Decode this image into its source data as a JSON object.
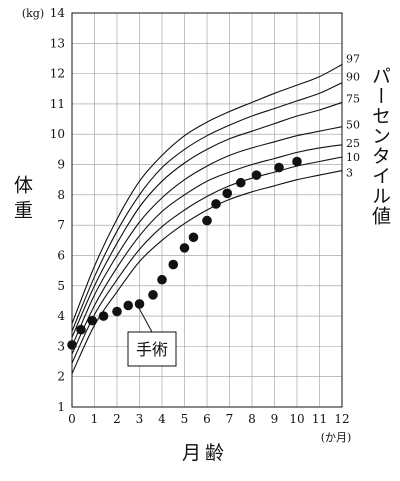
{
  "chart_data": {
    "type": "line",
    "title": "",
    "xlabel": "月齢",
    "xunit": "(か月)",
    "ylabel": "体重",
    "yunit": "(kg)",
    "xlim": [
      0,
      12
    ],
    "ylim": [
      1,
      14
    ],
    "x_ticks": [
      0,
      1,
      2,
      3,
      4,
      5,
      6,
      7,
      8,
      9,
      10,
      11,
      12
    ],
    "y_ticks": [
      1,
      2,
      3,
      4,
      5,
      6,
      7,
      8,
      9,
      10,
      11,
      12,
      13,
      14
    ],
    "grid": true,
    "legend_title": "パーセンタイル値",
    "percentile_x": [
      0,
      1,
      2,
      3,
      4,
      5,
      6,
      7,
      8,
      9,
      10,
      11,
      12
    ],
    "percentiles": [
      {
        "name": "97",
        "values": [
          3.75,
          5.65,
          7.2,
          8.45,
          9.3,
          9.95,
          10.4,
          10.75,
          11.05,
          11.35,
          11.62,
          11.9,
          12.3
        ]
      },
      {
        "name": "90",
        "values": [
          3.5,
          5.3,
          6.8,
          8.0,
          8.9,
          9.5,
          9.95,
          10.3,
          10.6,
          10.85,
          11.1,
          11.35,
          11.7
        ]
      },
      {
        "name": "75",
        "values": [
          3.3,
          5.0,
          6.4,
          7.6,
          8.45,
          9.05,
          9.5,
          9.85,
          10.1,
          10.35,
          10.6,
          10.8,
          11.05
        ]
      },
      {
        "name": "50",
        "values": [
          3.0,
          4.7,
          6.0,
          7.1,
          7.9,
          8.5,
          8.95,
          9.3,
          9.55,
          9.75,
          9.95,
          10.1,
          10.25
        ]
      },
      {
        "name": "25",
        "values": [
          2.75,
          4.35,
          5.6,
          6.65,
          7.45,
          8.0,
          8.45,
          8.75,
          9.0,
          9.2,
          9.4,
          9.55,
          9.65
        ]
      },
      {
        "name": "10",
        "values": [
          2.45,
          4.05,
          5.2,
          6.2,
          6.95,
          7.5,
          7.95,
          8.3,
          8.55,
          8.75,
          8.95,
          9.1,
          9.25
        ]
      },
      {
        "name": "3",
        "values": [
          2.1,
          3.7,
          4.8,
          5.8,
          6.5,
          7.05,
          7.5,
          7.85,
          8.1,
          8.3,
          8.5,
          8.65,
          8.8
        ]
      }
    ],
    "measurements": {
      "x": [
        0.0,
        0.4,
        0.9,
        1.4,
        2.0,
        2.5,
        3.0,
        3.6,
        4.0,
        4.5,
        5.0,
        5.4,
        6.0,
        6.4,
        6.9,
        7.5,
        8.2,
        9.2,
        10.0
      ],
      "y": [
        3.05,
        3.55,
        3.85,
        4.0,
        4.15,
        4.35,
        4.4,
        4.7,
        5.2,
        5.7,
        6.25,
        6.6,
        7.15,
        7.7,
        8.05,
        8.4,
        8.65,
        8.9,
        9.1
      ]
    },
    "annotation": {
      "label": "手術",
      "x": 2.95,
      "y": 4.3
    }
  }
}
